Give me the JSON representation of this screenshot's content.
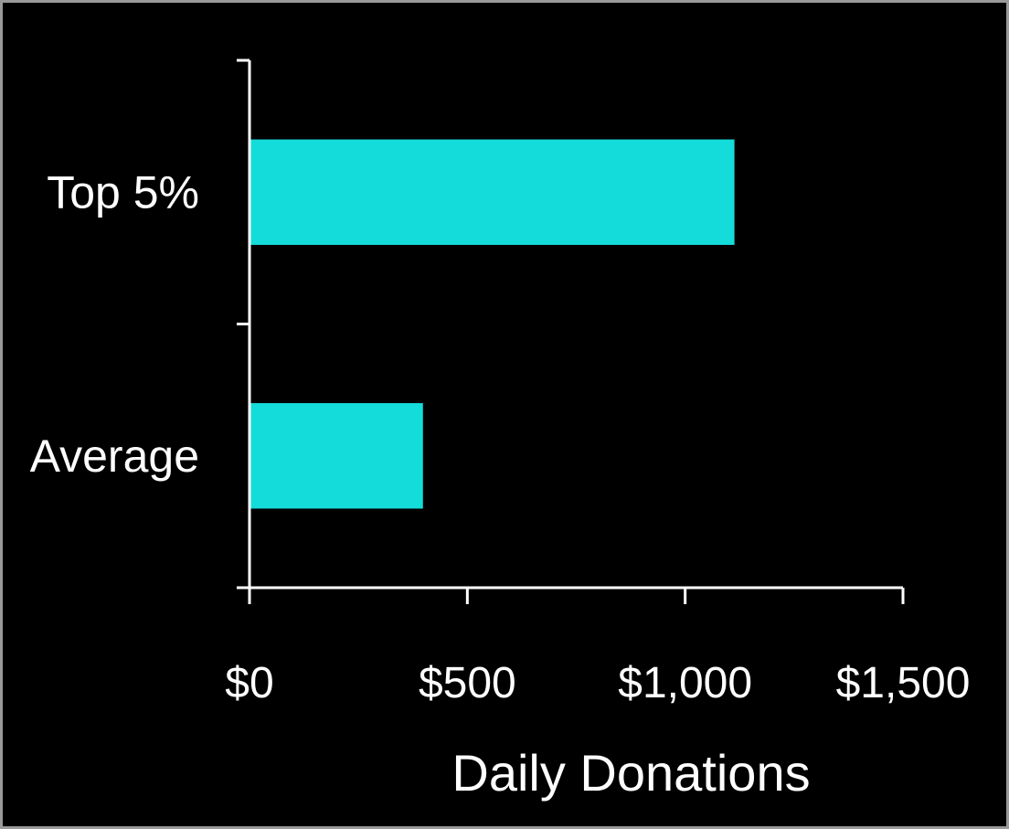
{
  "chart_data": {
    "type": "bar",
    "orientation": "horizontal",
    "categories": [
      "Top 5%",
      "Average"
    ],
    "values": [
      1110,
      395
    ],
    "xlabel": "Daily Donations",
    "ylabel": "",
    "title": "",
    "xlim": [
      0,
      1500
    ],
    "xticks": [
      0,
      500,
      1000,
      1500
    ],
    "xtick_labels": [
      "$0",
      "$500",
      "$1,000",
      "$1,500"
    ],
    "grid": false,
    "legend": "none",
    "colors": {
      "bar": "#14DCDA",
      "background": "#000000",
      "text": "#FFFFFF",
      "axis": "#FFFFFF"
    }
  }
}
